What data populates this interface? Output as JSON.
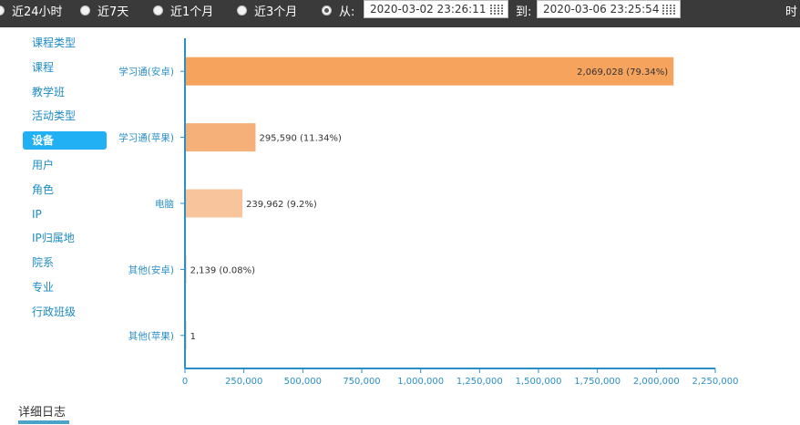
{
  "time_range": {
    "options": [
      {
        "label": "近24小时",
        "checked": false
      },
      {
        "label": "近7天",
        "checked": false
      },
      {
        "label": "近1个月",
        "checked": false
      },
      {
        "label": "近3个月",
        "checked": false
      }
    ],
    "custom_checked": true,
    "from_label": "从:",
    "from_value": "2020-03-02 23:26:11",
    "to_label": "到:",
    "to_value": "2020-03-06 23:25:54",
    "edge_text": "时"
  },
  "sidebar": {
    "items": [
      {
        "label": "课程类型",
        "active": false
      },
      {
        "label": "课程",
        "active": false
      },
      {
        "label": "教学班",
        "active": false
      },
      {
        "label": "活动类型",
        "active": false
      },
      {
        "label": "设备",
        "active": true
      },
      {
        "label": "用户",
        "active": false
      },
      {
        "label": "角色",
        "active": false
      },
      {
        "label": "IP",
        "active": false
      },
      {
        "label": "IP归属地",
        "active": false
      },
      {
        "label": "院系",
        "active": false
      },
      {
        "label": "专业",
        "active": false
      },
      {
        "label": "行政班级",
        "active": false
      }
    ]
  },
  "chart_data": {
    "type": "bar",
    "orientation": "horizontal",
    "categories": [
      "学习通(安卓)",
      "学习通(苹果)",
      "电脑",
      "其他(安卓)",
      "其他(苹果)"
    ],
    "values": [
      2069028,
      295590,
      239962,
      2139,
      1
    ],
    "data_labels": [
      "2,069,028 (79.34%)",
      "295,590 (11.34%)",
      "239,962 (9.2%)",
      "2,139 (0.08%)",
      "1"
    ],
    "colors": [
      "#f5a35d",
      "#f5b07a",
      "#f7c49c",
      "#f7c49c",
      "#f7c49c"
    ],
    "xlim": [
      0,
      2250000
    ],
    "x_ticks": [
      0,
      250000,
      500000,
      750000,
      1000000,
      1250000,
      1500000,
      1750000,
      2000000,
      2250000
    ],
    "x_tick_labels": [
      "0",
      "250,000",
      "500,000",
      "750,000",
      "1,000,000",
      "1,250,000",
      "1,500,000",
      "1,750,000",
      "2,000,000",
      "2,250,000"
    ],
    "axis_color": "#2a8fc7",
    "grid": false
  },
  "footer": {
    "tab_label": "详细日志"
  }
}
